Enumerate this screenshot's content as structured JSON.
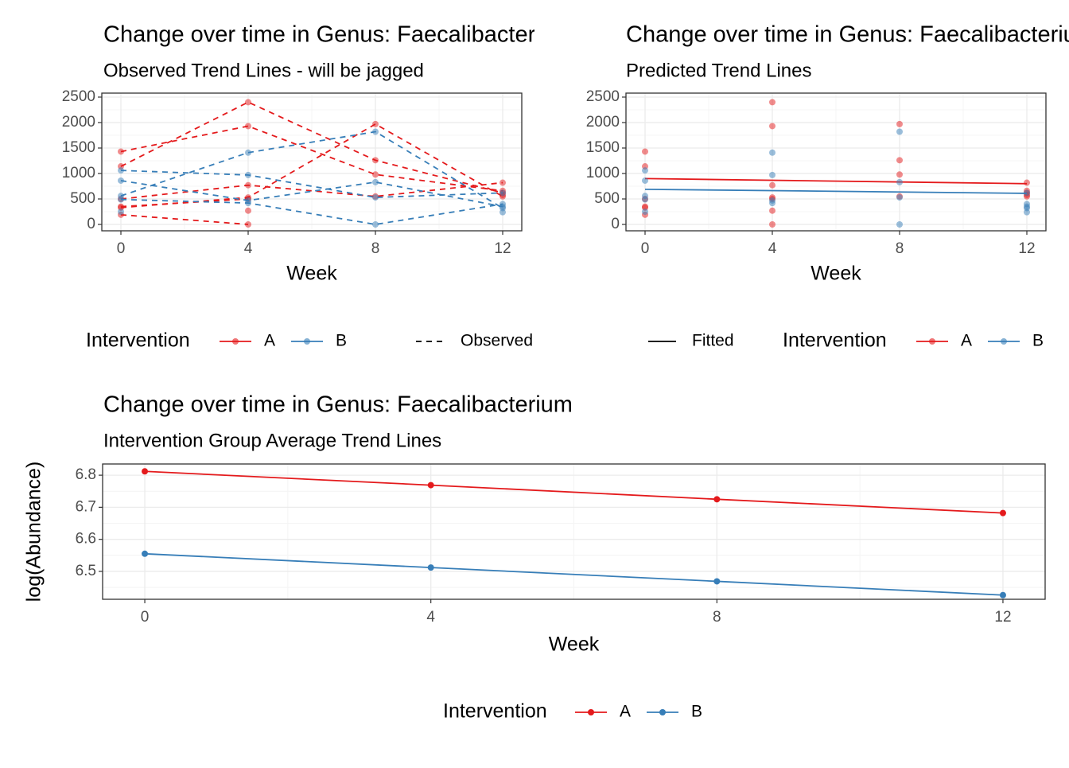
{
  "chart_data": [
    {
      "type": "line",
      "title": "Change over time in Genus: Faecalibacterium",
      "subtitle": "Observed Trend Lines - will be jagged",
      "x_label": "Week",
      "x": [
        0,
        4,
        8,
        12
      ],
      "xlim": [
        -0.6,
        12.6
      ],
      "xticks": [
        0,
        4,
        8,
        12
      ],
      "ylim": [
        -125,
        2578
      ],
      "yticks": [
        0,
        500,
        1000,
        1500,
        2000,
        2500
      ],
      "grid": true,
      "legend": {
        "title": "Intervention",
        "linetype": "Observed"
      },
      "series": [
        {
          "name": "A",
          "color": "#E41A1C",
          "lines": [
            [
              1140,
              2400,
              1260,
              620
            ],
            [
              1430,
              1930,
              980,
              660
            ],
            [
              330,
              530,
              1970,
              550
            ],
            [
              500,
              770,
              550,
              820
            ],
            [
              350,
              500,
              null,
              580
            ],
            [
              190,
              0,
              null,
              null
            ],
            [
              null,
              270,
              null,
              null
            ]
          ]
        },
        {
          "name": "B",
          "color": "#377EB8",
          "lines": [
            [
              1060,
              970,
              530,
              620
            ],
            [
              860,
              470,
              830,
              350
            ],
            [
              560,
              1410,
              1820,
              320
            ],
            [
              490,
              420,
              0,
              400
            ],
            [
              250,
              null,
              null,
              240
            ]
          ]
        }
      ]
    },
    {
      "type": "scatter",
      "title": "Change over time in Genus: Faecalibacterium",
      "subtitle": "Predicted Trend Lines",
      "x_label": "Week",
      "xlim": [
        -0.6,
        12.6
      ],
      "xticks": [
        0,
        4,
        8,
        12
      ],
      "ylim": [
        -125,
        2578
      ],
      "yticks": [
        0,
        500,
        1000,
        1500,
        2000,
        2500
      ],
      "grid": true,
      "legend": {
        "title": "Intervention",
        "linetype": "Fitted"
      },
      "series": [
        {
          "name": "A",
          "color": "#E41A1C",
          "x": [
            0,
            0,
            0,
            0,
            0,
            0,
            4,
            4,
            4,
            4,
            4,
            4,
            4,
            8,
            8,
            8,
            8,
            12,
            12,
            12,
            12,
            12
          ],
          "y": [
            1430,
            1140,
            500,
            350,
            330,
            190,
            2400,
            1930,
            770,
            530,
            500,
            270,
            0,
            1970,
            1260,
            980,
            550,
            820,
            660,
            620,
            580,
            550
          ],
          "fitted_x": [
            0,
            12
          ],
          "fitted": [
            900,
            800
          ]
        },
        {
          "name": "B",
          "color": "#377EB8",
          "x": [
            0,
            0,
            0,
            0,
            0,
            4,
            4,
            4,
            4,
            8,
            8,
            8,
            8,
            12,
            12,
            12,
            12,
            12
          ],
          "y": [
            1060,
            860,
            560,
            490,
            250,
            1410,
            970,
            470,
            420,
            1820,
            830,
            530,
            0,
            620,
            400,
            350,
            320,
            240
          ],
          "fitted_x": [
            0,
            12
          ],
          "fitted": [
            690,
            610
          ]
        }
      ]
    },
    {
      "type": "line",
      "title": "Change over time in Genus: Faecalibacterium",
      "subtitle": "Intervention Group Average Trend Lines",
      "x_label": "Week",
      "y_label": "log(Abundance)",
      "x": [
        0,
        4,
        8,
        12
      ],
      "xlim": [
        -0.59,
        12.59
      ],
      "xticks": [
        0,
        4,
        8,
        12
      ],
      "ylim": [
        6.413,
        6.835
      ],
      "yticks": [
        6.5,
        6.6,
        6.7,
        6.8
      ],
      "grid": true,
      "legend": {
        "title": "Intervention"
      },
      "series": [
        {
          "name": "A",
          "color": "#E41A1C",
          "values": [
            6.812,
            6.769,
            6.725,
            6.682
          ]
        },
        {
          "name": "B",
          "color": "#377EB8",
          "values": [
            6.555,
            6.512,
            6.469,
            6.426
          ]
        }
      ]
    }
  ]
}
